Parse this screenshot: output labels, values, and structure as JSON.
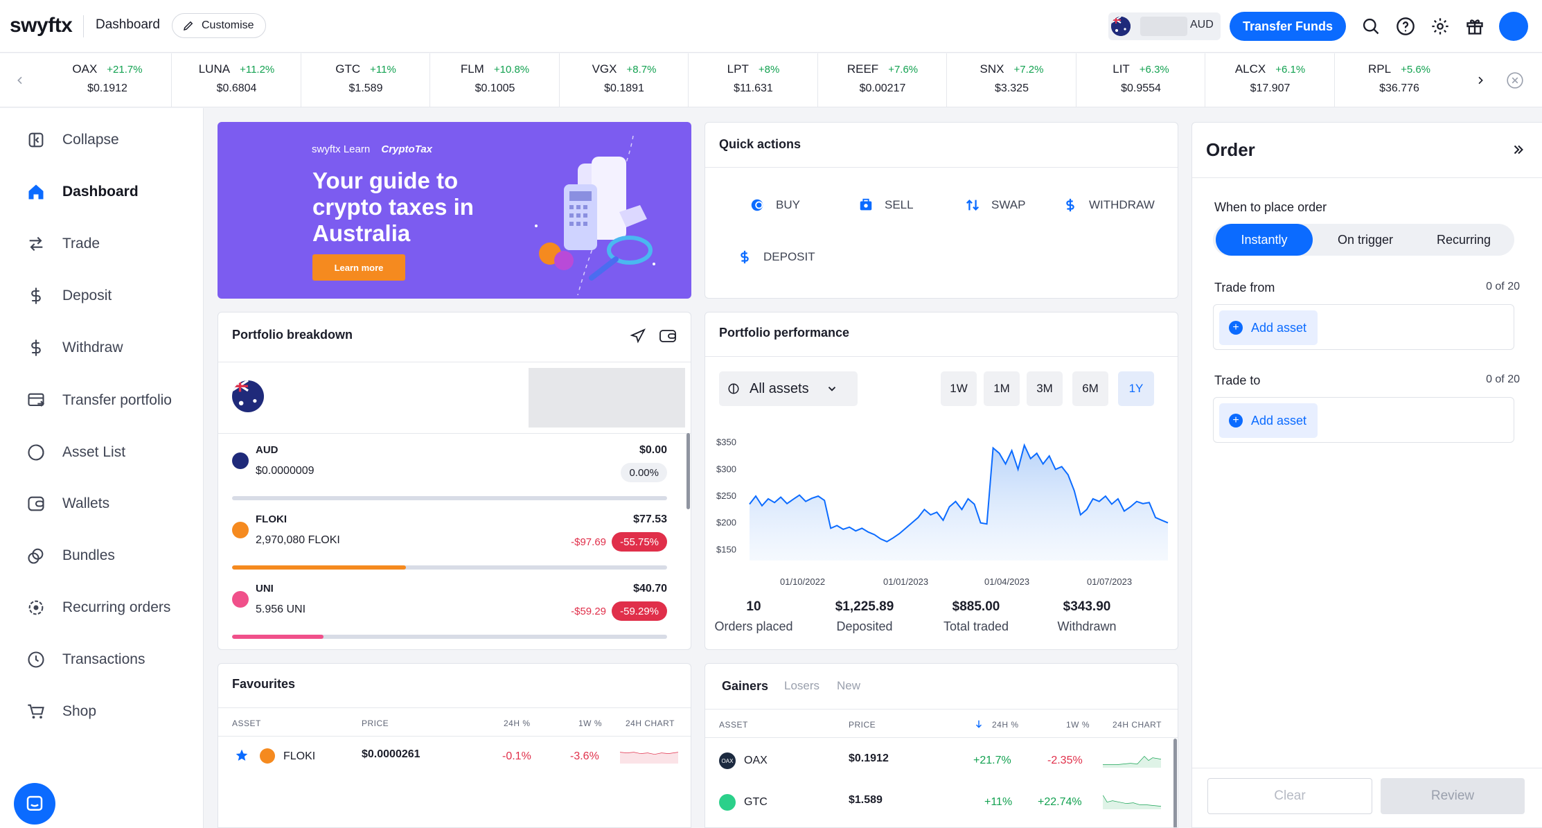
{
  "header": {
    "logo": "swyftx",
    "title": "Dashboard",
    "customise": "Customise",
    "currency": "AUD",
    "transfer_funds": "Transfer Funds"
  },
  "ticker": [
    {
      "symbol": "OAX",
      "change": "+21.7%",
      "price": "$0.1912"
    },
    {
      "symbol": "LUNA",
      "change": "+11.2%",
      "price": "$0.6804"
    },
    {
      "symbol": "GTC",
      "change": "+11%",
      "price": "$1.589"
    },
    {
      "symbol": "FLM",
      "change": "+10.8%",
      "price": "$0.1005"
    },
    {
      "symbol": "VGX",
      "change": "+8.7%",
      "price": "$0.1891"
    },
    {
      "symbol": "LPT",
      "change": "+8%",
      "price": "$11.631"
    },
    {
      "symbol": "REEF",
      "change": "+7.6%",
      "price": "$0.00217"
    },
    {
      "symbol": "SNX",
      "change": "+7.2%",
      "price": "$3.325"
    },
    {
      "symbol": "LIT",
      "change": "+6.3%",
      "price": "$0.9554"
    },
    {
      "symbol": "ALCX",
      "change": "+6.1%",
      "price": "$17.907"
    },
    {
      "symbol": "RPL",
      "change": "+5.6%",
      "price": "$36.776"
    }
  ],
  "sidebar": {
    "items": [
      {
        "label": "Collapse",
        "icon": "collapse-icon"
      },
      {
        "label": "Dashboard",
        "icon": "home-icon"
      },
      {
        "label": "Trade",
        "icon": "trade-arrows-icon"
      },
      {
        "label": "Deposit",
        "icon": "dollar-in-icon"
      },
      {
        "label": "Withdraw",
        "icon": "dollar-out-icon"
      },
      {
        "label": "Transfer portfolio",
        "icon": "transfer-portfolio-icon"
      },
      {
        "label": "Asset List",
        "icon": "asset-list-icon"
      },
      {
        "label": "Wallets",
        "icon": "wallet-icon"
      },
      {
        "label": "Bundles",
        "icon": "bundles-icon"
      },
      {
        "label": "Recurring orders",
        "icon": "recurring-icon"
      },
      {
        "label": "Transactions",
        "icon": "clock-icon"
      },
      {
        "label": "Shop",
        "icon": "cart-icon"
      }
    ]
  },
  "banner": {
    "brand": "swyftx Learn",
    "partner": "CryptoTax",
    "title": "Your guide to crypto taxes in Australia",
    "button": "Learn more"
  },
  "quick_actions": {
    "title": "Quick actions",
    "items": [
      "BUY",
      "SELL",
      "SWAP",
      "WITHDRAW",
      "DEPOSIT"
    ]
  },
  "order": {
    "title": "Order",
    "when_label": "When to place order",
    "tabs": [
      "Instantly",
      "On trigger",
      "Recurring"
    ],
    "selected_tab": "Instantly",
    "trade_from": "Trade from",
    "trade_from_count": "0 of 20",
    "trade_to": "Trade to",
    "trade_to_count": "0 of 20",
    "add_asset": "Add asset",
    "clear": "Clear",
    "review": "Review"
  },
  "breakdown": {
    "title": "Portfolio breakdown",
    "rows": [
      {
        "name": "AUD",
        "amount": "$0.0000009",
        "value": "$0.00",
        "change": "",
        "pct": "0.00%",
        "fill": 0.0,
        "color": "#d8dce6"
      },
      {
        "name": "FLOKI",
        "amount": "2,970,080 FLOKI",
        "value": "$77.53",
        "change": "-$97.69",
        "pct": "-55.75%",
        "fill": 0.4,
        "color": "#f58a1f"
      },
      {
        "name": "UNI",
        "amount": "5.956 UNI",
        "value": "$40.70",
        "change": "-$59.29",
        "pct": "-59.29%",
        "fill": 0.21,
        "color": "#f0508a"
      }
    ]
  },
  "performance": {
    "title": "Portfolio performance",
    "asset_filter": "All assets",
    "ranges": [
      "1W",
      "1M",
      "3M",
      "6M",
      "1Y"
    ],
    "selected_range": "1Y",
    "stats": [
      {
        "value": "10",
        "label": "Orders placed"
      },
      {
        "value": "$1,225.89",
        "label": "Deposited"
      },
      {
        "value": "$885.00",
        "label": "Total traded"
      },
      {
        "value": "$343.90",
        "label": "Withdrawn"
      }
    ]
  },
  "chart_data": {
    "type": "area",
    "x_ticks": [
      "01/10/2022",
      "01/01/2023",
      "01/04/2023",
      "01/07/2023"
    ],
    "y_ticks": [
      "$350",
      "$300",
      "$250",
      "$200",
      "$150"
    ],
    "ylim": [
      140,
      360
    ],
    "series": [
      {
        "values": [
          235,
          250,
          232,
          245,
          238,
          248,
          236,
          244,
          252,
          240,
          246,
          250,
          242,
          190,
          195,
          188,
          192,
          185,
          190,
          183,
          178,
          170,
          165,
          172,
          180,
          190,
          200,
          210,
          225,
          215,
          220,
          205,
          230,
          240,
          225,
          245,
          235,
          200,
          198,
          340,
          330,
          310,
          335,
          300,
          345,
          320,
          330,
          310,
          325,
          300,
          305,
          290,
          260,
          215,
          225,
          245,
          240,
          250,
          235,
          245,
          222,
          230,
          240,
          236,
          238,
          210,
          205,
          200
        ]
      }
    ]
  },
  "favourites": {
    "title": "Favourites",
    "columns": [
      "ASSET",
      "PRICE",
      "24H %",
      "1W %",
      "24H CHART"
    ],
    "rows": [
      {
        "asset": "FLOKI",
        "price": "$0.0000261",
        "d24": "-0.1%",
        "w1": "-3.6%"
      }
    ]
  },
  "gainers": {
    "tabs": [
      "Gainers",
      "Losers",
      "New"
    ],
    "selected_tab": "Gainers",
    "columns": [
      "ASSET",
      "PRICE",
      "24H %",
      "1W %",
      "24H CHART"
    ],
    "rows": [
      {
        "asset": "OAX",
        "price": "$0.1912",
        "d24": "+21.7%",
        "w1": "-2.35%"
      },
      {
        "asset": "GTC",
        "price": "$1.589",
        "d24": "+11%",
        "w1": "+22.74%"
      }
    ]
  },
  "colors": {
    "accent": "#0b6bff",
    "positive": "#12a150",
    "negative": "#e02f4a",
    "banner": "#7c5cf0"
  }
}
